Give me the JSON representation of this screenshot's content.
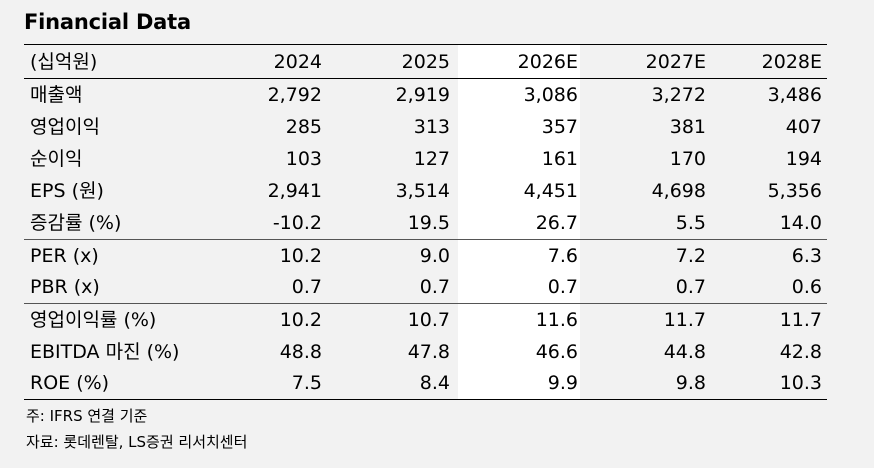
{
  "title": "Financial Data",
  "header": {
    "unit": "(십억원)",
    "years": [
      "2024",
      "2025",
      "2026E",
      "2027E",
      "2028E"
    ]
  },
  "groups": [
    {
      "rows": [
        {
          "label": "매출액",
          "values": [
            "2,792",
            "2,919",
            "3,086",
            "3,272",
            "3,486"
          ]
        },
        {
          "label": "영업이익",
          "values": [
            "285",
            "313",
            "357",
            "381",
            "407"
          ]
        },
        {
          "label": "순이익",
          "values": [
            "103",
            "127",
            "161",
            "170",
            "194"
          ]
        },
        {
          "label": "EPS (원)",
          "values": [
            "2,941",
            "3,514",
            "4,451",
            "4,698",
            "5,356"
          ]
        },
        {
          "label": "증감률 (%)",
          "values": [
            "-10.2",
            "19.5",
            "26.7",
            "5.5",
            "14.0"
          ]
        }
      ]
    },
    {
      "rows": [
        {
          "label": "PER (x)",
          "values": [
            "10.2",
            "9.0",
            "7.6",
            "7.2",
            "6.3"
          ]
        },
        {
          "label": "PBR (x)",
          "values": [
            "0.7",
            "0.7",
            "0.7",
            "0.7",
            "0.6"
          ]
        }
      ]
    },
    {
      "rows": [
        {
          "label": "영업이익률 (%)",
          "values": [
            "10.2",
            "10.7",
            "11.6",
            "11.7",
            "11.7"
          ]
        },
        {
          "label": "EBITDA 마진 (%)",
          "values": [
            "48.8",
            "47.8",
            "46.6",
            "44.8",
            "42.8"
          ]
        },
        {
          "label": "ROE (%)",
          "values": [
            "7.5",
            "8.4",
            "9.9",
            "9.8",
            "10.3"
          ]
        }
      ]
    }
  ],
  "notes": {
    "note1": "주: IFRS 연결 기준",
    "note2": "자료: 롯데렌탈, LS증권 리서치센터"
  }
}
